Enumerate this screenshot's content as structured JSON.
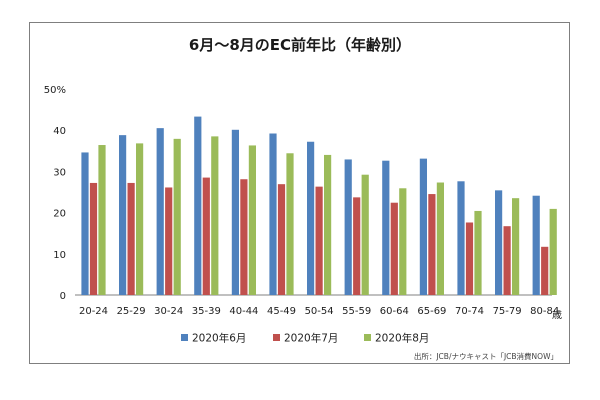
{
  "chart_data": {
    "type": "bar",
    "title": "6月～8月のEC前年比（年齢別）",
    "ylim": [
      0,
      50
    ],
    "yticks": [
      "0",
      "10",
      "20",
      "30",
      "40",
      "50%"
    ],
    "x_unit": "歳",
    "categories": [
      "20-24",
      "25-29",
      "30-24",
      "35-39",
      "40-44",
      "45-49",
      "50-54",
      "55-59",
      "60-64",
      "65-69",
      "70-74",
      "75-79",
      "80-84"
    ],
    "series": [
      {
        "name": "2020年6月",
        "color": "#4f81bd",
        "values": [
          34.6,
          38.8,
          40.5,
          43.3,
          40.1,
          39.2,
          37.2,
          32.9,
          32.6,
          33.1,
          27.6,
          25.4,
          24.1
        ]
      },
      {
        "name": "2020年7月",
        "color": "#c0504d",
        "values": [
          27.2,
          27.2,
          26.1,
          28.5,
          28.1,
          26.9,
          26.3,
          23.7,
          22.4,
          24.5,
          17.6,
          16.7,
          11.7
        ]
      },
      {
        "name": "2020年8月",
        "color": "#9bbb59",
        "values": [
          36.4,
          36.8,
          37.9,
          38.5,
          36.3,
          34.4,
          34.0,
          29.2,
          25.9,
          27.3,
          20.4,
          23.5,
          20.9
        ]
      }
    ],
    "grid": false,
    "legend_position": "bottom",
    "source": "出所：JCB/ナウキャスト「JCB消費NOW」"
  }
}
